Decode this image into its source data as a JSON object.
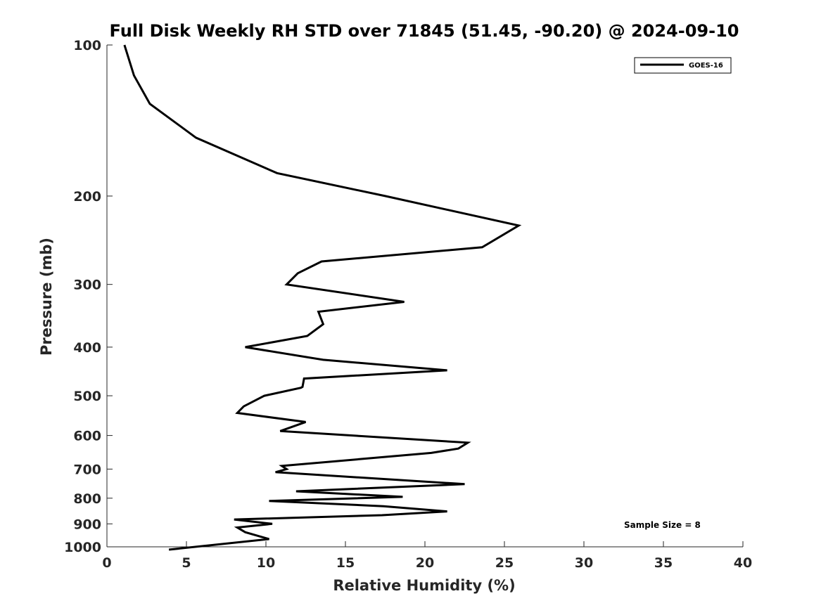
{
  "chart_data": {
    "type": "line",
    "title": "Full Disk Weekly RH STD over 71845 (51.45, -90.20) @ 2024-09-10",
    "xlabel": "Relative Humidity (%)",
    "ylabel": "Pressure (mb)",
    "xlim": [
      0,
      40
    ],
    "ylim": [
      1000,
      100
    ],
    "yscale": "log",
    "y_reversed": true,
    "x_ticks": [
      0,
      5,
      10,
      15,
      20,
      25,
      30,
      35,
      40
    ],
    "x_tick_labels": [
      "0",
      "5",
      "10",
      "15",
      "20",
      "25",
      "30",
      "35",
      "40"
    ],
    "y_ticks": [
      100,
      200,
      300,
      400,
      500,
      600,
      700,
      800,
      900,
      1000
    ],
    "y_tick_labels": [
      "100",
      "200",
      "300",
      "400",
      "500",
      "600",
      "700",
      "800",
      "900",
      "1000"
    ],
    "grid": false,
    "legend_position": "top-right",
    "annotation": "Sample Size = 8",
    "series": [
      {
        "name": "GOES-16",
        "color": "#000000",
        "x": [
          1.1,
          1.7,
          2.7,
          5.6,
          10.7,
          17.5,
          25.9,
          23.6,
          13.5,
          12.0,
          11.3,
          18.7,
          13.3,
          13.6,
          12.6,
          8.7,
          13.6,
          21.4,
          12.4,
          12.3,
          12.2,
          9.9,
          8.6,
          8.2,
          12.5,
          10.9,
          22.7,
          22.1,
          20.4,
          11.0,
          11.3,
          10.6,
          22.5,
          11.9,
          18.6,
          10.2,
          17.4,
          21.4,
          17.3,
          8.0,
          10.4,
          8.2,
          8.7,
          10.2,
          3.9
        ],
        "y": [
          100,
          115,
          131,
          153,
          180,
          200,
          229,
          253,
          270,
          285,
          300,
          325,
          340,
          360,
          380,
          400,
          424,
          445,
          462,
          480,
          482,
          500,
          525,
          541,
          564,
          588,
          620,
          637,
          650,
          690,
          700,
          710,
          750,
          775,
          795,
          810,
          830,
          850,
          865,
          882,
          900,
          915,
          935,
          965,
          1013
        ]
      }
    ]
  }
}
